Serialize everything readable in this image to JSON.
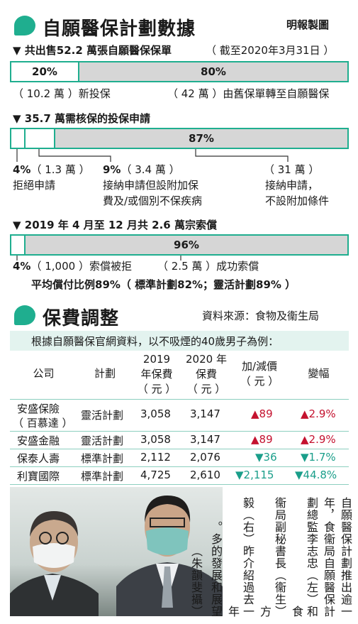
{
  "header": {
    "title": "自願醫保計劃數據",
    "credit": "明報製圖"
  },
  "section1": {
    "heading": "▼ 共出售52.2 萬張自願醫保保單",
    "date_note": "（ 截至2020年3月31日 ）",
    "left_pct": "20%",
    "right_pct": "80%",
    "left_value": 0.2,
    "left_label": "（ 10.2 萬 ）新投保",
    "right_label": "（ 42 萬 ）由舊保單轉至自願醫保"
  },
  "section2": {
    "heading": "▼ 35.7 萬需核保的投保申請",
    "big_pct": "87%",
    "seg_values": [
      0.04,
      0.09,
      0.87
    ],
    "a_pct": "4%",
    "a_count": "（ 1.3 萬 ）",
    "a_desc": "拒絕申請",
    "b_pct": "9%",
    "b_count": "（ 3.4 萬 ）",
    "b_desc1": "接納申請但設附加保",
    "b_desc2": "費及/或個別不保疾病",
    "c_count": "（ 31 萬 ）",
    "c_desc1": "接納申請，",
    "c_desc2": "不設附加條件"
  },
  "section3": {
    "heading": "▼ 2019 年 4 月至 12 月共 2.6 萬宗索償",
    "big_pct": "96%",
    "seg_values": [
      0.04,
      0.96
    ],
    "a_pct": "4%",
    "a_label": "（ 1,000 ）索償被拒",
    "b_label": "（ 2.5 萬 ）成功索償",
    "summary": "平均償付比例89%（ 標準計劃82%；靈活計劃89% ）"
  },
  "premium": {
    "title": "保費調整",
    "source": "資料來源：食物及衞生局",
    "intro": "根據自願醫保官網資料，以不吸煙的40歲男子為例：",
    "headers": {
      "company": "公司",
      "plan": "計劃",
      "y2019_1": "2019",
      "y2019_2": "年保費",
      "y2019_3": "（ 元 ）",
      "y2020_1": "2020 年",
      "y2020_2": "保費",
      "y2020_3": "（ 元 ）",
      "change_1": "加/減價",
      "change_2": "（ 元 ）",
      "pct": "變幅"
    },
    "rows": [
      {
        "company": "安盛保險",
        "company2": "（ 百慕達 ）",
        "plan": "靈活計劃",
        "p2019": "3,058",
        "p2020": "3,147",
        "change": "▲89",
        "pct": "▲2.9%",
        "dir": "up"
      },
      {
        "company": "安盛金融",
        "company2": "",
        "plan": "靈活計劃",
        "p2019": "3,058",
        "p2020": "3,147",
        "change": "▲89",
        "pct": "▲2.9%",
        "dir": "up"
      },
      {
        "company": "保泰人壽",
        "company2": "",
        "plan": "標準計劃",
        "p2019": "2,112",
        "p2020": "2,076",
        "change": "▼36",
        "pct": "▼1.7%",
        "dir": "down"
      },
      {
        "company": "利寶國際",
        "company2": "",
        "plan": "標準計劃",
        "p2019": "4,725",
        "p2020": "2,610",
        "change": "▼2,115",
        "pct": "▼44.8%",
        "dir": "down"
      }
    ]
  },
  "caption": {
    "columns": [
      "自願醫保計劃推出逾一",
      "年，食衞局自願醫保計",
      "劃總監李志忠（左）和食",
      "衞局副秘書長（衞生）方",
      "毅（右）昨介紹過去一年",
      "多的發展和展望。",
      "（朱韻斐攝）"
    ]
  },
  "colors": {
    "accent": "#1fae8f",
    "grey": "#d6d6d6",
    "up": "#c4122f",
    "down": "#1a9e8a"
  }
}
